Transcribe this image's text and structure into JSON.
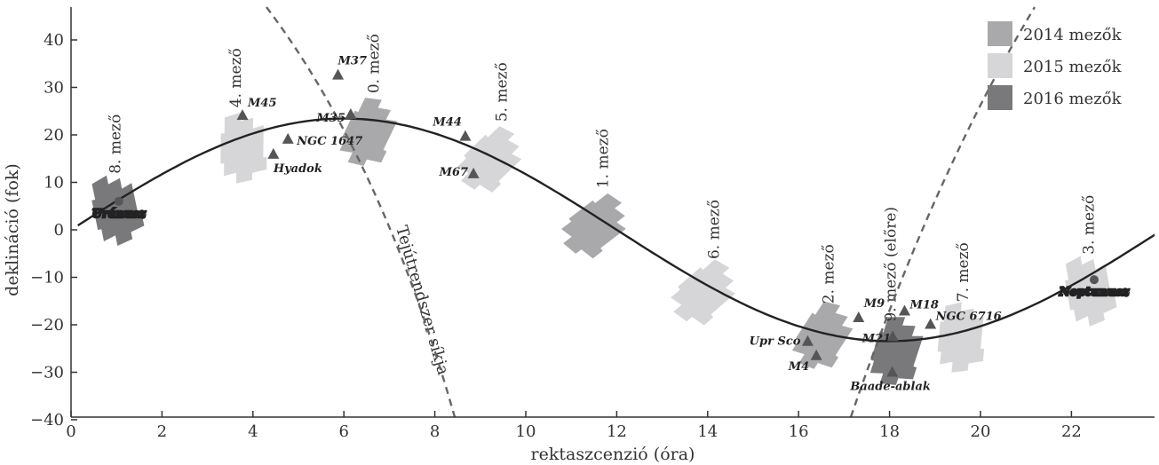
{
  "chart_data": {
    "type": "scatter",
    "xlabel": "rektaszcenzió (óra)",
    "ylabel": "deklináció (fok)",
    "xlim": [
      0,
      24
    ],
    "ylim": [
      -40,
      45
    ],
    "xticks": [
      "0",
      "2",
      "4",
      "6",
      "8",
      "10",
      "12",
      "14",
      "16",
      "18",
      "20",
      "22"
    ],
    "yticks": [
      "−40",
      "−30",
      "−20",
      "−10",
      "0",
      "10",
      "20",
      "30",
      "40"
    ],
    "legend": {
      "position": "top-right",
      "entries": [
        {
          "name": "2014 mezők",
          "color": "#a9a9ab"
        },
        {
          "name": "2015 mezők",
          "color": "#d6d6d8"
        },
        {
          "name": "2016 mezők",
          "color": "#79797c"
        }
      ]
    },
    "curves": {
      "ecliptic": {
        "amplitude_deg": 23.44,
        "style": "solid"
      },
      "galactic_plane": {
        "name": "Tejútrendszer síkja",
        "style": "dashed"
      }
    },
    "fields": [
      {
        "label": "8. mező",
        "ra": 1.0,
        "dec": 5,
        "year": "2016"
      },
      {
        "label": "4. mező",
        "ra": 3.8,
        "dec": 18,
        "year": "2015"
      },
      {
        "label": "0. mező",
        "ra": 6.6,
        "dec": 21,
        "year": "2014"
      },
      {
        "label": "5. mező",
        "ra": 9.3,
        "dec": 15,
        "year": "2015"
      },
      {
        "label": "1. mező",
        "ra": 11.6,
        "dec": 1,
        "year": "2014"
      },
      {
        "label": "6. mező",
        "ra": 14.0,
        "dec": -13,
        "year": "2015"
      },
      {
        "label": "2. mező",
        "ra": 16.6,
        "dec": -22,
        "year": "2014"
      },
      {
        "label": "9. mező (előre)",
        "ra": 18.2,
        "dec": -25,
        "year": "2016"
      },
      {
        "label": "7. mező",
        "ra": 19.6,
        "dec": -22,
        "year": "2015"
      },
      {
        "label": "3. mező",
        "ra": 22.4,
        "dec": -12,
        "year": "2015"
      }
    ],
    "objects": [
      {
        "name": "Uránusz",
        "ra": 1.05,
        "dec": 6,
        "symbol": "circle"
      },
      {
        "name": "M45",
        "ra": 3.77,
        "dec": 24.1
      },
      {
        "name": "Hyadok",
        "ra": 4.45,
        "dec": 15.9
      },
      {
        "name": "NGC 1647",
        "ra": 4.77,
        "dec": 19.1
      },
      {
        "name": "M37",
        "ra": 5.87,
        "dec": 32.6
      },
      {
        "name": "M35",
        "ra": 6.15,
        "dec": 24.3
      },
      {
        "name": "M44",
        "ra": 8.67,
        "dec": 19.7
      },
      {
        "name": "M67",
        "ra": 8.85,
        "dec": 11.8
      },
      {
        "name": "Upr Sco",
        "ra": 16.2,
        "dec": -23.5
      },
      {
        "name": "M4",
        "ra": 16.39,
        "dec": -26.5
      },
      {
        "name": "M9",
        "ra": 17.32,
        "dec": -18.5
      },
      {
        "name": "M21",
        "ra": 18.07,
        "dec": -22.5
      },
      {
        "name": "M18",
        "ra": 18.33,
        "dec": -17.1
      },
      {
        "name": "Baade-ablak",
        "ra": 18.06,
        "dec": -30.0
      },
      {
        "name": "NGC 6716",
        "ra": 18.9,
        "dec": -19.9
      },
      {
        "name": "Neptunusz",
        "ra": 22.5,
        "dec": -10.5,
        "symbol": "circle"
      }
    ]
  }
}
